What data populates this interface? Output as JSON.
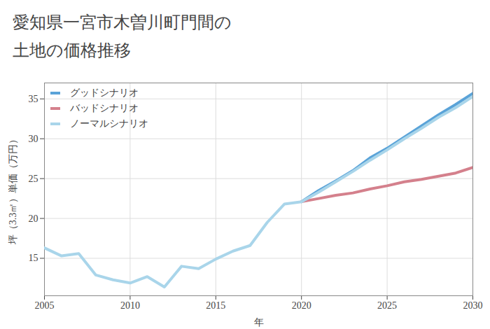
{
  "chart_data": {
    "type": "line",
    "title": "愛知県一宮市木曽川町門間の土地の価格推移",
    "x_label": "年",
    "y_label": "坪（3.3㎡）単価（万円）",
    "x": [
      2005,
      2006,
      2007,
      2008,
      2009,
      2010,
      2011,
      2012,
      2013,
      2014,
      2015,
      2016,
      2017,
      2018,
      2019,
      2020,
      2021,
      2022,
      2023,
      2024,
      2025,
      2026,
      2027,
      2028,
      2029,
      2030
    ],
    "series": [
      {
        "name": "グッドシナリオ",
        "color": "#5aa3d8",
        "values": [
          null,
          null,
          null,
          null,
          null,
          null,
          null,
          null,
          null,
          null,
          null,
          null,
          null,
          null,
          null,
          22.1,
          23.5,
          24.7,
          26.0,
          27.6,
          28.8,
          30.2,
          31.6,
          33.0,
          34.3,
          35.7
        ]
      },
      {
        "name": "バッドシナリオ",
        "color": "#d4808c",
        "values": [
          null,
          null,
          null,
          null,
          null,
          null,
          null,
          null,
          null,
          null,
          null,
          null,
          null,
          null,
          null,
          22.1,
          22.5,
          22.9,
          23.2,
          23.7,
          24.1,
          24.6,
          24.9,
          25.3,
          25.7,
          26.4
        ]
      },
      {
        "name": "ノーマルシナリオ",
        "color": "#a9d5ea",
        "values": [
          16.3,
          15.3,
          15.6,
          12.9,
          12.3,
          11.9,
          12.7,
          11.4,
          14.0,
          13.7,
          14.9,
          15.9,
          16.6,
          19.5,
          21.8,
          22.1,
          23.3,
          24.6,
          25.9,
          27.3,
          28.6,
          30.0,
          31.3,
          32.7,
          33.9,
          35.3
        ]
      }
    ],
    "xlim": [
      2005,
      2030
    ],
    "xticks": [
      2005,
      2010,
      2015,
      2020,
      2025,
      2030
    ],
    "ylim": [
      10.3,
      37
    ],
    "yticks": [
      15,
      20,
      25,
      30,
      35
    ],
    "grid": true,
    "legend": "top-left"
  }
}
